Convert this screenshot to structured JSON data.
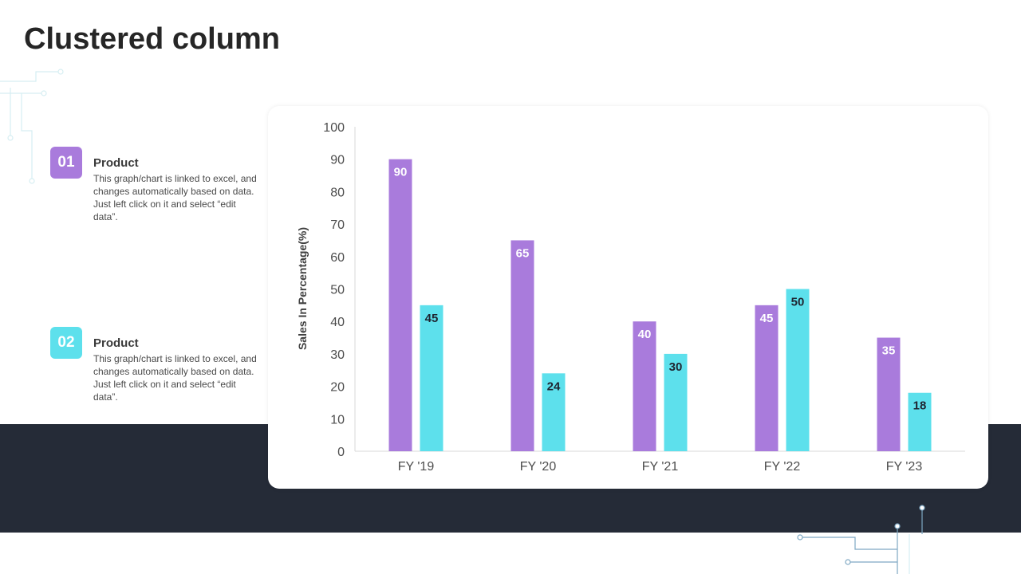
{
  "page": {
    "title": "Clustered column"
  },
  "items": [
    {
      "number": "01",
      "heading": "Product",
      "text": "This graph/chart is linked to excel, and changes automatically based on data. Just left click on it and select “edit data”.",
      "color": "#a97bdc"
    },
    {
      "number": "02",
      "heading": "Product",
      "text": "This graph/chart is linked to excel, and changes automatically based on data. Just left click on it and select “edit data”.",
      "color": "#5de0ec"
    }
  ],
  "colors": {
    "dark_band": "#252b37",
    "series_1": "#a97bdc",
    "series_2": "#5de0ec"
  },
  "chart_data": {
    "type": "bar",
    "title": "",
    "xlabel": "",
    "ylabel": "Sales In Percentage(%)",
    "categories": [
      "FY '19",
      "FY '20",
      "FY '21",
      "FY '22",
      "FY '23"
    ],
    "ylim": [
      0,
      100
    ],
    "yticks": [
      0,
      10,
      20,
      30,
      40,
      50,
      60,
      70,
      80,
      90,
      100
    ],
    "grid": false,
    "legend": "none",
    "series": [
      {
        "values": [
          90,
          65,
          40,
          45,
          35
        ],
        "color": "#a97bdc",
        "label_color": "#ffffff"
      },
      {
        "values": [
          45,
          24,
          30,
          50,
          18
        ],
        "color": "#5de0ec",
        "label_color": "#1f2430"
      }
    ]
  }
}
